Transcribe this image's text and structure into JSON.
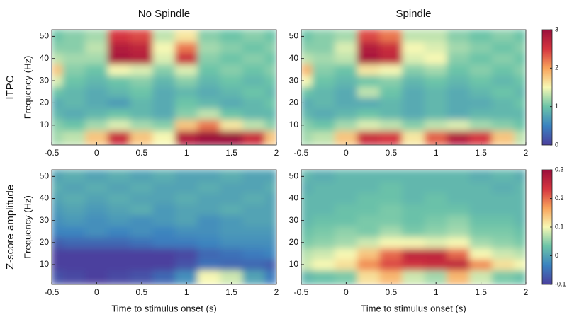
{
  "chart_data": [
    {
      "type": "heatmap",
      "title": "No Spindle",
      "row_label": "ITPC",
      "ylabel": "Frequency (Hz)",
      "x": [
        -0.5,
        -0.25,
        0,
        0.25,
        0.5,
        0.75,
        1,
        1.25,
        1.5,
        1.75,
        2
      ],
      "y": [
        5,
        10,
        15,
        20,
        25,
        30,
        35,
        40,
        45,
        50
      ],
      "z": [
        [
          1.2,
          1.3,
          1.8,
          2.6,
          1.8,
          1.5,
          2.8,
          3,
          3,
          2.6,
          1.8
        ],
        [
          1.1,
          1,
          1.2,
          1.4,
          1.2,
          1.1,
          1.8,
          2.2,
          1.6,
          1.3,
          1.1
        ],
        [
          0.9,
          0.8,
          0.9,
          1,
          0.9,
          0.8,
          1.1,
          1.3,
          1,
          0.9,
          0.9
        ],
        [
          0.8,
          0.9,
          0.8,
          0.7,
          0.9,
          0.8,
          1,
          0.9,
          0.8,
          0.9,
          1
        ],
        [
          1,
          0.9,
          0.8,
          0.9,
          1,
          0.8,
          0.9,
          0.8,
          0.9,
          1,
          0.9
        ],
        [
          1.4,
          1,
          0.9,
          1,
          1.1,
          0.9,
          1.1,
          0.9,
          1,
          0.9,
          1
        ],
        [
          1.8,
          1.1,
          1,
          1.5,
          1.4,
          1.1,
          1.4,
          1,
          1.1,
          1,
          1.1
        ],
        [
          1.3,
          1.2,
          1.2,
          2.9,
          2.8,
          1.4,
          2.6,
          1.1,
          1,
          1.1,
          1
        ],
        [
          1.1,
          1.1,
          1.3,
          2.8,
          2.7,
          1.5,
          2.2,
          1.2,
          1.1,
          1,
          1.1
        ],
        [
          1,
          1.1,
          1.2,
          2.5,
          2.4,
          1.3,
          1.6,
          1.1,
          1,
          1.1,
          1
        ]
      ],
      "xlim": [
        -0.5,
        2
      ],
      "ylim": [
        1,
        53
      ],
      "xticks": [
        -0.5,
        0,
        0.5,
        1,
        1.5,
        2
      ],
      "yticks": [
        10,
        20,
        30,
        40,
        50
      ],
      "zlim": [
        0,
        3
      ],
      "colormap": [
        "#4b3f9e",
        "#3a82c0",
        "#6cc4a8",
        "#f7f8b4",
        "#f8a35b",
        "#d5343f",
        "#9b0f3b"
      ]
    },
    {
      "type": "heatmap",
      "title": "Spindle",
      "x": [
        -0.5,
        -0.25,
        0,
        0.25,
        0.5,
        0.75,
        1,
        1.25,
        1.5,
        1.75,
        2
      ],
      "y": [
        5,
        10,
        15,
        20,
        25,
        30,
        35,
        40,
        45,
        50
      ],
      "z": [
        [
          1.2,
          1.3,
          1.8,
          2.6,
          2.5,
          1.6,
          2.3,
          2.8,
          2.5,
          1.8,
          1.3
        ],
        [
          1.1,
          1,
          1.2,
          1.4,
          1.3,
          1.1,
          1.3,
          1.4,
          1.2,
          1.1,
          1
        ],
        [
          0.9,
          0.8,
          0.9,
          1,
          0.9,
          0.8,
          0.9,
          0.8,
          0.9,
          0.9,
          0.9
        ],
        [
          0.8,
          0.9,
          0.8,
          0.8,
          0.9,
          0.8,
          0.9,
          0.8,
          0.8,
          0.9,
          1
        ],
        [
          1,
          0.9,
          0.8,
          1.3,
          1,
          0.8,
          0.9,
          0.8,
          0.9,
          1,
          0.9
        ],
        [
          1.5,
          1,
          0.9,
          1,
          1.1,
          0.9,
          1,
          0.9,
          1,
          0.9,
          1
        ],
        [
          1.9,
          1.1,
          1,
          1.6,
          1.5,
          1.1,
          1.2,
          1,
          1.1,
          1,
          1.1
        ],
        [
          1.3,
          1.2,
          1.3,
          2.9,
          2.7,
          1.4,
          1.5,
          1.1,
          1,
          1.1,
          1
        ],
        [
          1.1,
          1.1,
          1.4,
          2.8,
          2.6,
          1.5,
          1.4,
          1.2,
          1.1,
          1,
          1.1
        ],
        [
          1,
          1.1,
          1.2,
          2.4,
          2.2,
          1.3,
          1.3,
          1.1,
          1,
          1.1,
          1
        ]
      ],
      "xlim": [
        -0.5,
        2
      ],
      "ylim": [
        1,
        53
      ],
      "xticks": [
        -0.5,
        0,
        0.5,
        1,
        1.5,
        2
      ],
      "yticks": [
        10,
        20,
        30,
        40,
        50
      ],
      "zlim": [
        0,
        3
      ],
      "zticks": [
        0,
        1,
        2,
        3
      ],
      "colormap": [
        "#4b3f9e",
        "#3a82c0",
        "#6cc4a8",
        "#f7f8b4",
        "#f8a35b",
        "#d5343f",
        "#9b0f3b"
      ]
    },
    {
      "type": "heatmap",
      "row_label": "Z-score amplitude",
      "ylabel": "Frequency (Hz)",
      "xlabel": "Time to stimulus onset (s)",
      "x": [
        -0.5,
        -0.25,
        0,
        0.25,
        0.5,
        0.75,
        1,
        1.25,
        1.5,
        1.75,
        2
      ],
      "y": [
        5,
        10,
        15,
        20,
        25,
        30,
        35,
        40,
        45,
        50
      ],
      "z": [
        [
          -0.08,
          -0.09,
          -0.1,
          -0.09,
          -0.08,
          -0.06,
          -0.02,
          0.1,
          0.08,
          0,
          -0.04
        ],
        [
          -0.1,
          -0.1,
          -0.1,
          -0.1,
          -0.1,
          -0.1,
          -0.08,
          -0.05,
          -0.06,
          -0.06,
          -0.07
        ],
        [
          -0.1,
          -0.1,
          -0.1,
          -0.1,
          -0.1,
          -0.1,
          -0.09,
          -0.06,
          -0.05,
          -0.04,
          -0.03
        ],
        [
          -0.07,
          -0.06,
          -0.06,
          -0.06,
          -0.05,
          -0.04,
          -0.04,
          -0.03,
          -0.02,
          -0.02,
          -0.02
        ],
        [
          -0.03,
          -0.03,
          -0.02,
          -0.03,
          -0.02,
          -0.03,
          -0.02,
          -0.02,
          -0.01,
          -0.01,
          -0.01
        ],
        [
          -0.02,
          -0.01,
          -0.02,
          -0.01,
          -0.02,
          -0.01,
          0,
          -0.02,
          -0.01,
          0,
          0
        ],
        [
          -0.01,
          0,
          -0.01,
          0,
          0.01,
          -0.01,
          0,
          0,
          0.01,
          0,
          0
        ],
        [
          0,
          0.01,
          0,
          0.01,
          0,
          0,
          0.01,
          0,
          0,
          0.01,
          0
        ],
        [
          0.01,
          0,
          0.01,
          0,
          0.01,
          0,
          0,
          0.01,
          0,
          0,
          0.01
        ],
        [
          0,
          0.01,
          0,
          0.01,
          0,
          0.01,
          0,
          0,
          0.01,
          0,
          0
        ]
      ],
      "xlim": [
        -0.5,
        2
      ],
      "ylim": [
        1,
        53
      ],
      "xticks": [
        -0.5,
        0,
        0.5,
        1,
        1.5,
        2
      ],
      "yticks": [
        10,
        20,
        30,
        40,
        50
      ],
      "zlim": [
        -0.1,
        0.3
      ],
      "colormap": [
        "#4b3f9e",
        "#3a82c0",
        "#6cc4a8",
        "#f7f8b4",
        "#f8a35b",
        "#d5343f",
        "#9b0f3b"
      ]
    },
    {
      "type": "heatmap",
      "xlabel": "Time to stimulus onset (s)",
      "x": [
        -0.5,
        -0.25,
        0,
        0.25,
        0.5,
        0.75,
        1,
        1.25,
        1.5,
        1.75,
        2
      ],
      "y": [
        5,
        10,
        15,
        20,
        25,
        30,
        35,
        40,
        45,
        50
      ],
      "z": [
        [
          0.02,
          0.03,
          0.04,
          0.12,
          0.15,
          0.08,
          0.06,
          0.15,
          0.08,
          0.04,
          0.03
        ],
        [
          0.08,
          0.1,
          0.12,
          0.18,
          0.22,
          0.24,
          0.25,
          0.26,
          0.18,
          0.12,
          0.1
        ],
        [
          0.07,
          0.08,
          0.1,
          0.14,
          0.2,
          0.26,
          0.26,
          0.2,
          0.1,
          0.08,
          0.07
        ],
        [
          0.04,
          0.05,
          0.06,
          0.08,
          0.1,
          0.1,
          0.09,
          0.1,
          0.06,
          0.05,
          0.04
        ],
        [
          0.03,
          0.04,
          0.05,
          0.04,
          0.06,
          0.04,
          0.05,
          0.06,
          0.04,
          0.04,
          0.03
        ],
        [
          0.02,
          0.03,
          0.03,
          0.04,
          0.04,
          0.03,
          0.04,
          0.05,
          0.03,
          0.03,
          0.02
        ],
        [
          0.02,
          0.02,
          0.03,
          0.03,
          0.04,
          0.03,
          0.03,
          0.03,
          0.02,
          0.02,
          0.02
        ],
        [
          0.02,
          0.02,
          0.02,
          0.03,
          0.03,
          0.02,
          0.03,
          0.02,
          0.02,
          0.02,
          0.02
        ],
        [
          0.01,
          0.02,
          0.02,
          0.02,
          0.03,
          0.02,
          0.02,
          0.02,
          0.02,
          0.01,
          0.02
        ],
        [
          0.02,
          0.01,
          0.02,
          0.02,
          0.02,
          0.02,
          0.02,
          0.02,
          0.01,
          0.02,
          0.01
        ]
      ],
      "xlim": [
        -0.5,
        2
      ],
      "ylim": [
        1,
        53
      ],
      "xticks": [
        -0.5,
        0,
        0.5,
        1,
        1.5,
        2
      ],
      "yticks": [
        10,
        20,
        30,
        40,
        50
      ],
      "zlim": [
        -0.1,
        0.3
      ],
      "zticks": [
        -0.1,
        0,
        0.1,
        0.2,
        0.3
      ],
      "colormap": [
        "#4b3f9e",
        "#3a82c0",
        "#6cc4a8",
        "#f7f8b4",
        "#f8a35b",
        "#d5343f",
        "#9b0f3b"
      ]
    }
  ]
}
